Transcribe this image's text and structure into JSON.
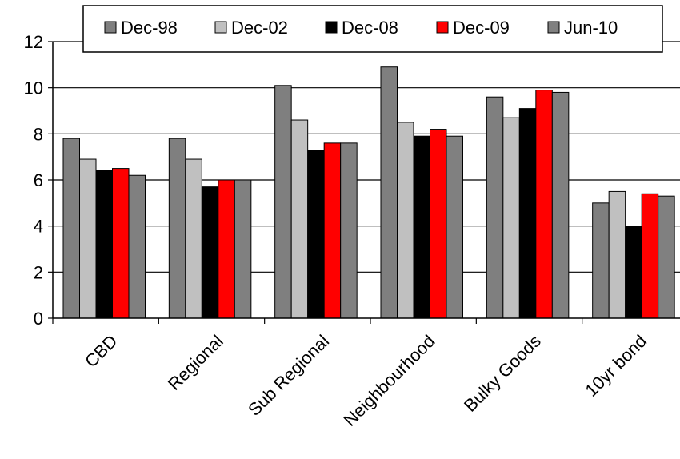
{
  "chart_data": {
    "type": "bar",
    "categories": [
      "CBD",
      "Regional",
      "Sub Regional",
      "Neighbourhood",
      "Bulky Goods",
      "10yr bond"
    ],
    "series": [
      {
        "name": "Dec-98",
        "color": "#7f7f7f",
        "values": [
          7.8,
          7.8,
          10.1,
          10.9,
          9.6,
          5.0
        ]
      },
      {
        "name": "Dec-02",
        "color": "#c0c0c0",
        "values": [
          6.9,
          6.9,
          8.6,
          8.5,
          8.7,
          5.5
        ]
      },
      {
        "name": "Dec-08",
        "color": "#000000",
        "values": [
          6.4,
          5.7,
          7.3,
          7.9,
          9.1,
          4.0
        ]
      },
      {
        "name": "Dec-09",
        "color": "#ff0000",
        "values": [
          6.5,
          6.0,
          7.6,
          8.2,
          9.9,
          5.4
        ]
      },
      {
        "name": "Jun-10",
        "color": "#808080",
        "values": [
          6.2,
          6.0,
          7.6,
          7.9,
          9.8,
          5.3
        ]
      }
    ],
    "yticks": [
      "0",
      "2",
      "4",
      "6",
      "8",
      "10",
      "12"
    ],
    "ylim": [
      0,
      12
    ],
    "legend_position": "top",
    "grid": true
  }
}
